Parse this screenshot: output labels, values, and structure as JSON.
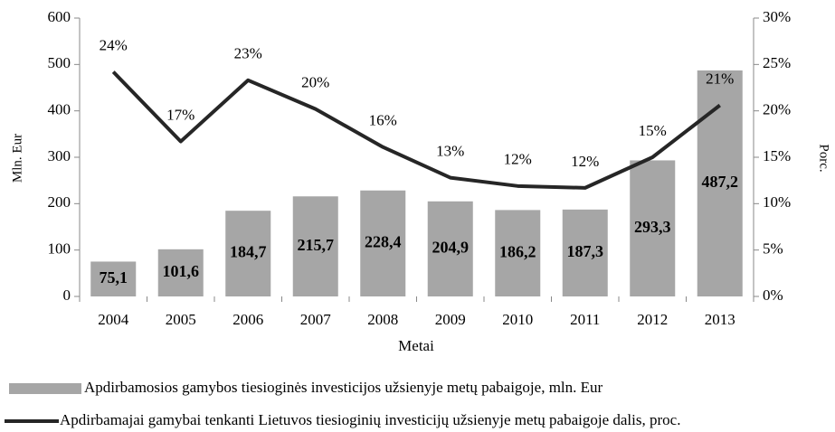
{
  "chart_data": {
    "type": "bar",
    "categories": [
      "2004",
      "2005",
      "2006",
      "2007",
      "2008",
      "2009",
      "2010",
      "2011",
      "2012",
      "2013"
    ],
    "series": [
      {
        "name": "Apdirbamosios gamybos tiesioginės investicijos užsienyje metų pabaigoje, mln. Eur",
        "type": "bar",
        "color": "#a6a6a6",
        "values": [
          75.1,
          101.6,
          184.7,
          215.7,
          228.4,
          204.9,
          186.2,
          187.3,
          293.3,
          487.2
        ],
        "value_labels": [
          "75,1",
          "101,6",
          "184,7",
          "215,7",
          "228,4",
          "204,9",
          "186,2",
          "187,3",
          "293,3",
          "487,2"
        ]
      },
      {
        "name": "Apdirbamajai gamybai tenkanti Lietuvos tiesioginių investicijų užsienyje metų pabaigoje dalis, proc.",
        "type": "line",
        "axis": "y2",
        "color": "#262626",
        "values": [
          24.2,
          16.7,
          23.3,
          20.2,
          16.1,
          12.8,
          11.9,
          11.7,
          15.0,
          20.6
        ],
        "value_labels": [
          "24%",
          "17%",
          "23%",
          "20%",
          "16%",
          "13%",
          "12%",
          "12%",
          "15%",
          "21%"
        ]
      }
    ],
    "x_label": "Metai",
    "y_label": "Mln. Eur",
    "y2_label": "Porc.",
    "ylim": [
      0,
      600
    ],
    "yticks": [
      0,
      100,
      200,
      300,
      400,
      500,
      600
    ],
    "y2lim": [
      0,
      30
    ],
    "y2ticks": [
      {
        "value": 0,
        "label": "0%"
      },
      {
        "value": 5,
        "label": "5%"
      },
      {
        "value": 10,
        "label": "10%"
      },
      {
        "value": 15,
        "label": "15%"
      },
      {
        "value": 20,
        "label": "20%"
      },
      {
        "value": 25,
        "label": "25%"
      },
      {
        "value": 30,
        "label": "30%"
      }
    ],
    "legend": "bottom-left"
  }
}
